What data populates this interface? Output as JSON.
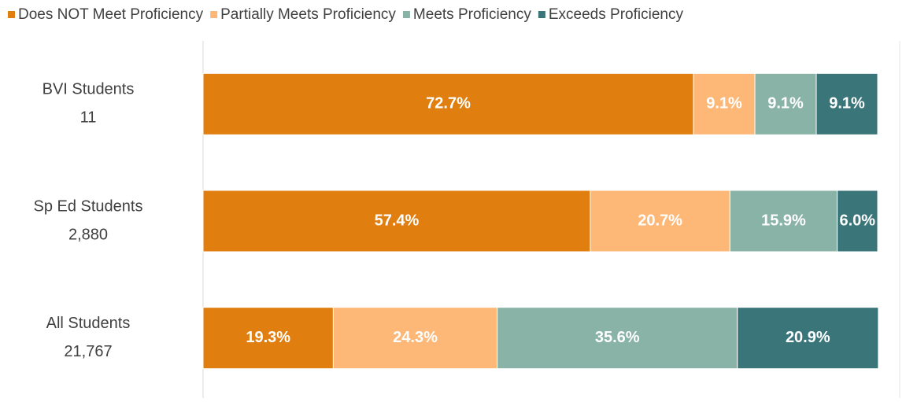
{
  "chart_data": {
    "type": "stacked-bar-horizontal",
    "categories": [
      "BVI Students",
      "Sp Ed Students",
      "All Students"
    ],
    "category_counts": [
      "11",
      "2,880",
      "21,767"
    ],
    "xlim": [
      0,
      100
    ],
    "legend": "top",
    "series": [
      {
        "name": "Does NOT Meet Proficiency",
        "color": "#e07e10",
        "values": [
          72.7,
          57.4,
          19.3
        ],
        "value_labels": [
          "72.7%",
          "57.4%",
          "19.3%"
        ]
      },
      {
        "name": "Partially Meets Proficiency",
        "color": "#fdb877",
        "values": [
          9.1,
          20.7,
          24.3
        ],
        "value_labels": [
          "9.1%",
          "20.7%",
          "24.3%"
        ]
      },
      {
        "name": "Meets Proficiency",
        "color": "#88b3a6",
        "values": [
          9.1,
          15.9,
          35.6
        ],
        "value_labels": [
          "9.1%",
          "15.9%",
          "35.6%"
        ]
      },
      {
        "name": "Exceeds Proficiency",
        "color": "#3a757a",
        "values": [
          9.1,
          6.0,
          20.9
        ],
        "value_labels": [
          "9.1%",
          "6.0%",
          "20.9%"
        ]
      }
    ]
  }
}
